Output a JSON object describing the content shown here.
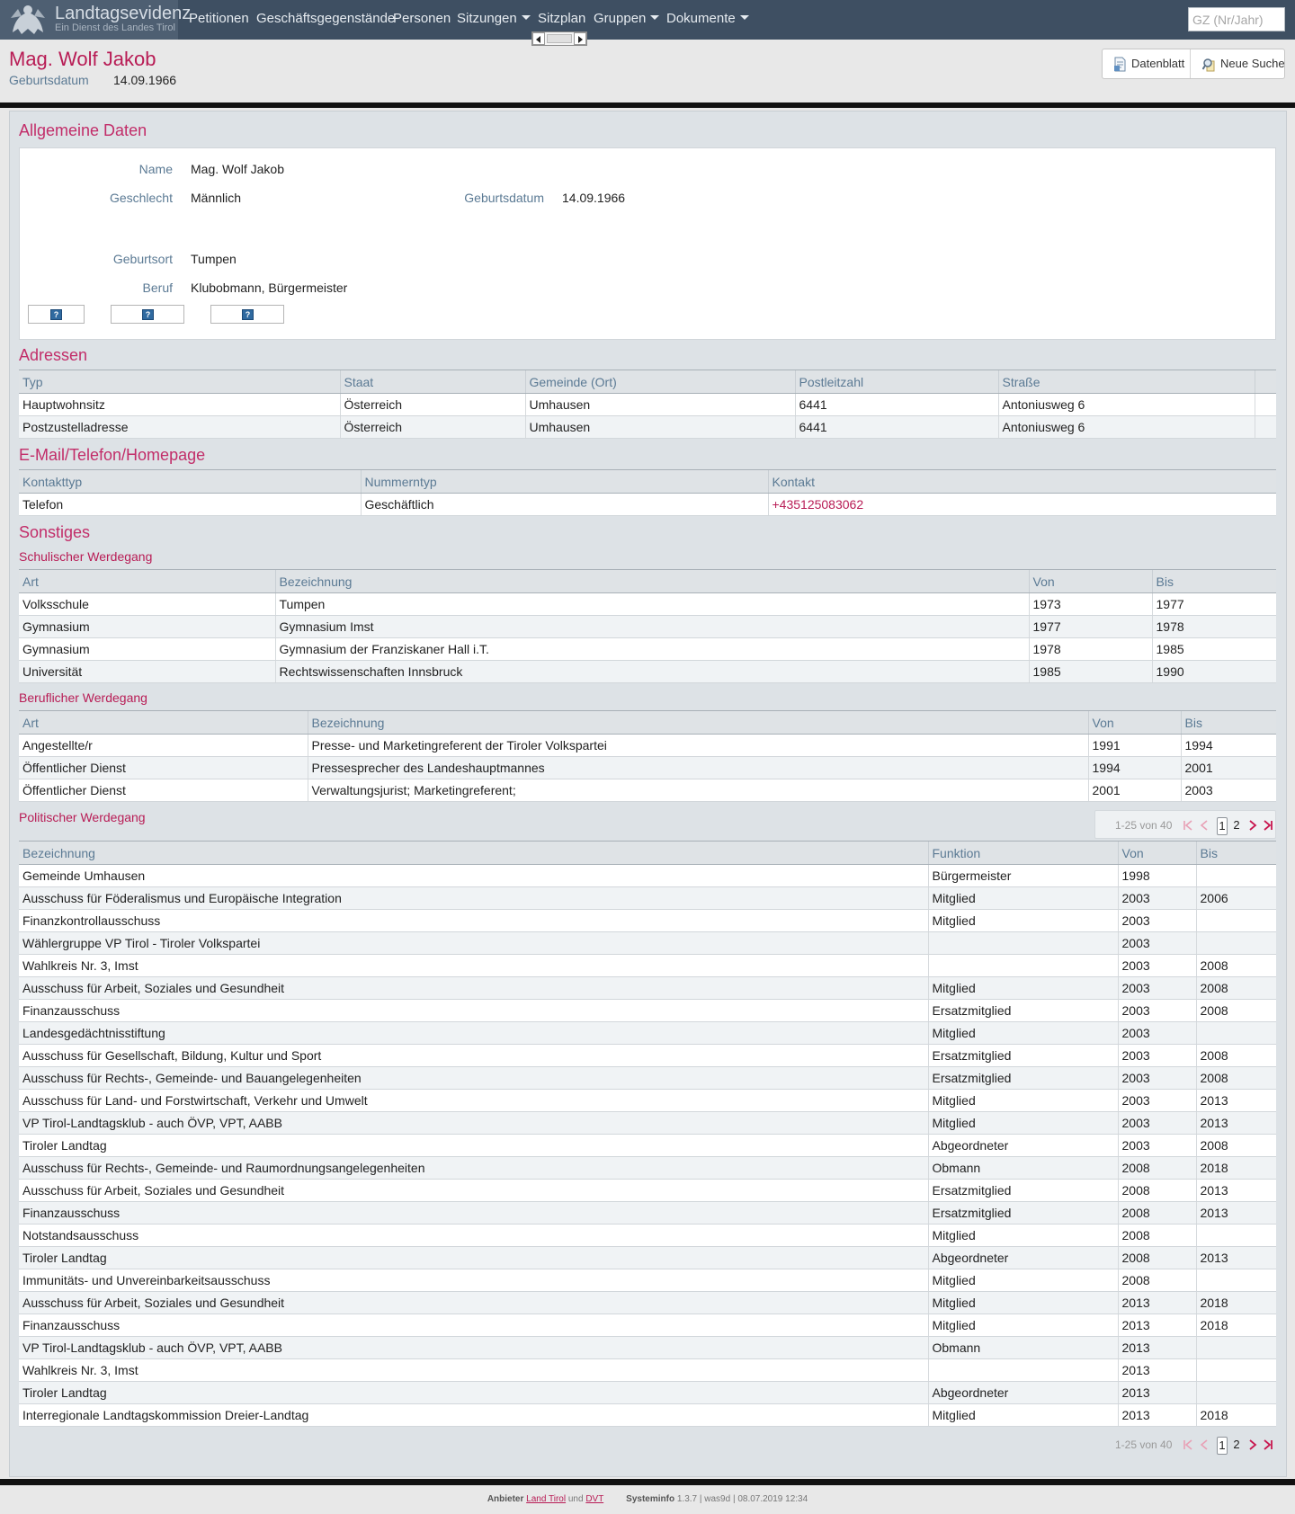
{
  "brand": {
    "title": "Landtagsevidenz",
    "subtitle": "Ein Dienst des Landes Tirol"
  },
  "nav": {
    "items": [
      {
        "label": "Petitionen",
        "dropdown": false
      },
      {
        "label": "Geschäftsgegenstände",
        "dropdown": false
      },
      {
        "label": "Personen",
        "dropdown": false
      },
      {
        "label": "Sitzungen",
        "dropdown": true
      },
      {
        "label": "Sitzplan",
        "dropdown": false
      },
      {
        "label": "Gruppen",
        "dropdown": true
      },
      {
        "label": "Dokumente",
        "dropdown": true
      }
    ],
    "search_placeholder": "GZ (Nr/Jahr)"
  },
  "header": {
    "name": "Mag. Wolf Jakob",
    "birth_label": "Geburtsdatum",
    "birth_value": "14.09.1966"
  },
  "toolbar": {
    "datenblatt": "Datenblatt",
    "neue_suche": "Neue Suche"
  },
  "allgemein": {
    "title": "Allgemeine Daten",
    "name_label": "Name",
    "name_value": "Mag. Wolf Jakob",
    "geschlecht_label": "Geschlecht",
    "geschlecht_value": "Männlich",
    "geburtsdatum_label": "Geburtsdatum",
    "geburtsdatum_value": "14.09.1966",
    "geburtsort_label": "Geburtsort",
    "geburtsort_value": "Tumpen",
    "beruf_label": "Beruf",
    "beruf_value": "Klubobmann, Bürgermeister"
  },
  "adressen": {
    "title": "Adressen",
    "columns": [
      "Typ",
      "Staat",
      "Gemeinde (Ort)",
      "Postleitzahl",
      "Straße",
      ""
    ],
    "rows": [
      [
        "Hauptwohnsitz",
        "Österreich",
        "Umhausen",
        "6441",
        "Antoniusweg 6",
        ""
      ],
      [
        "Postzustelladresse",
        "Österreich",
        "Umhausen",
        "6441",
        "Antoniusweg 6",
        ""
      ]
    ]
  },
  "kontakt": {
    "title": "E-Mail/Telefon/Homepage",
    "columns": [
      "Kontakttyp",
      "Nummerntyp",
      "Kontakt"
    ],
    "rows": [
      [
        "Telefon",
        "Geschäftlich",
        "+435125083062"
      ]
    ]
  },
  "sonstiges": {
    "title": "Sonstiges"
  },
  "schule": {
    "title": "Schulischer Werdegang",
    "columns": [
      "Art",
      "Bezeichnung",
      "Von",
      "Bis"
    ],
    "rows": [
      [
        "Volksschule",
        "Tumpen",
        "1973",
        "1977"
      ],
      [
        "Gymnasium",
        "Gymnasium Imst",
        "1977",
        "1978"
      ],
      [
        "Gymnasium",
        "Gymnasium der Franziskaner Hall i.T.",
        "1978",
        "1985"
      ],
      [
        "Universität",
        "Rechtswissenschaften Innsbruck",
        "1985",
        "1990"
      ]
    ]
  },
  "beruf": {
    "title": "Beruflicher Werdegang",
    "columns": [
      "Art",
      "Bezeichnung",
      "Von",
      "Bis"
    ],
    "rows": [
      [
        "Angestellte/r",
        "Presse- und Marketingreferent der Tiroler Volkspartei",
        "1991",
        "1994"
      ],
      [
        "Öffentlicher Dienst",
        "Pressesprecher des Landeshauptmannes",
        "1994",
        "2001"
      ],
      [
        "Öffentlicher Dienst",
        "Verwaltungsjurist; Marketingreferent;",
        "2001",
        "2003"
      ]
    ]
  },
  "politik": {
    "title": "Politischer Werdegang",
    "pager": {
      "info": "1-25 von 40",
      "page1": "1",
      "page2": "2"
    },
    "columns": [
      "Bezeichnung",
      "Funktion",
      "Von",
      "Bis"
    ],
    "rows": [
      [
        "Gemeinde Umhausen",
        "Bürgermeister",
        "1998",
        ""
      ],
      [
        "Ausschuss für Föderalismus und Europäische Integration",
        "Mitglied",
        "2003",
        "2006"
      ],
      [
        "Finanzkontrollausschuss",
        "Mitglied",
        "2003",
        ""
      ],
      [
        "Wählergruppe VP Tirol - Tiroler Volkspartei",
        "",
        "2003",
        ""
      ],
      [
        "Wahlkreis Nr. 3, Imst",
        "",
        "2003",
        "2008"
      ],
      [
        "Ausschuss für Arbeit, Soziales und Gesundheit",
        "Mitglied",
        "2003",
        "2008"
      ],
      [
        "Finanzausschuss",
        "Ersatzmitglied",
        "2003",
        "2008"
      ],
      [
        "Landesgedächtnisstiftung",
        "Mitglied",
        "2003",
        ""
      ],
      [
        "Ausschuss für Gesellschaft, Bildung, Kultur und Sport",
        "Ersatzmitglied",
        "2003",
        "2008"
      ],
      [
        "Ausschuss für Rechts-, Gemeinde- und Bauangelegenheiten",
        "Ersatzmitglied",
        "2003",
        "2008"
      ],
      [
        "Ausschuss für Land- und Forstwirtschaft, Verkehr und Umwelt",
        "Mitglied",
        "2003",
        "2013"
      ],
      [
        "VP Tirol-Landtagsklub - auch ÖVP, VPT, AABB",
        "Mitglied",
        "2003",
        "2013"
      ],
      [
        "Tiroler Landtag",
        "Abgeordneter",
        "2003",
        "2008"
      ],
      [
        "Ausschuss für Rechts-, Gemeinde- und Raumordnungsangelegenheiten",
        "Obmann",
        "2008",
        "2018"
      ],
      [
        "Ausschuss für Arbeit, Soziales und Gesundheit",
        "Ersatzmitglied",
        "2008",
        "2013"
      ],
      [
        "Finanzausschuss",
        "Ersatzmitglied",
        "2008",
        "2013"
      ],
      [
        "Notstandsausschuss",
        "Mitglied",
        "2008",
        ""
      ],
      [
        "Tiroler Landtag",
        "Abgeordneter",
        "2008",
        "2013"
      ],
      [
        "Immunitäts- und Unvereinbarkeitsausschuss",
        "Mitglied",
        "2008",
        ""
      ],
      [
        "Ausschuss für Arbeit, Soziales und Gesundheit",
        "Mitglied",
        "2013",
        "2018"
      ],
      [
        "Finanzausschuss",
        "Mitglied",
        "2013",
        "2018"
      ],
      [
        "VP Tirol-Landtagsklub - auch ÖVP, VPT, AABB",
        "Obmann",
        "2013",
        ""
      ],
      [
        "Wahlkreis Nr. 3, Imst",
        "",
        "2013",
        ""
      ],
      [
        "Tiroler Landtag",
        "Abgeordneter",
        "2013",
        ""
      ],
      [
        "Interregionale Landtagskommission Dreier-Landtag",
        "Mitglied",
        "2013",
        "2018"
      ]
    ]
  },
  "footer": {
    "anbieter_label": "Anbieter",
    "anbieter_link1": "Land Tirol",
    "und": "und",
    "anbieter_link2": "DVT",
    "systeminfo_label": "Systeminfo",
    "systeminfo_value": "1.3.7 | was9d | 08.07.2019 12:34"
  }
}
